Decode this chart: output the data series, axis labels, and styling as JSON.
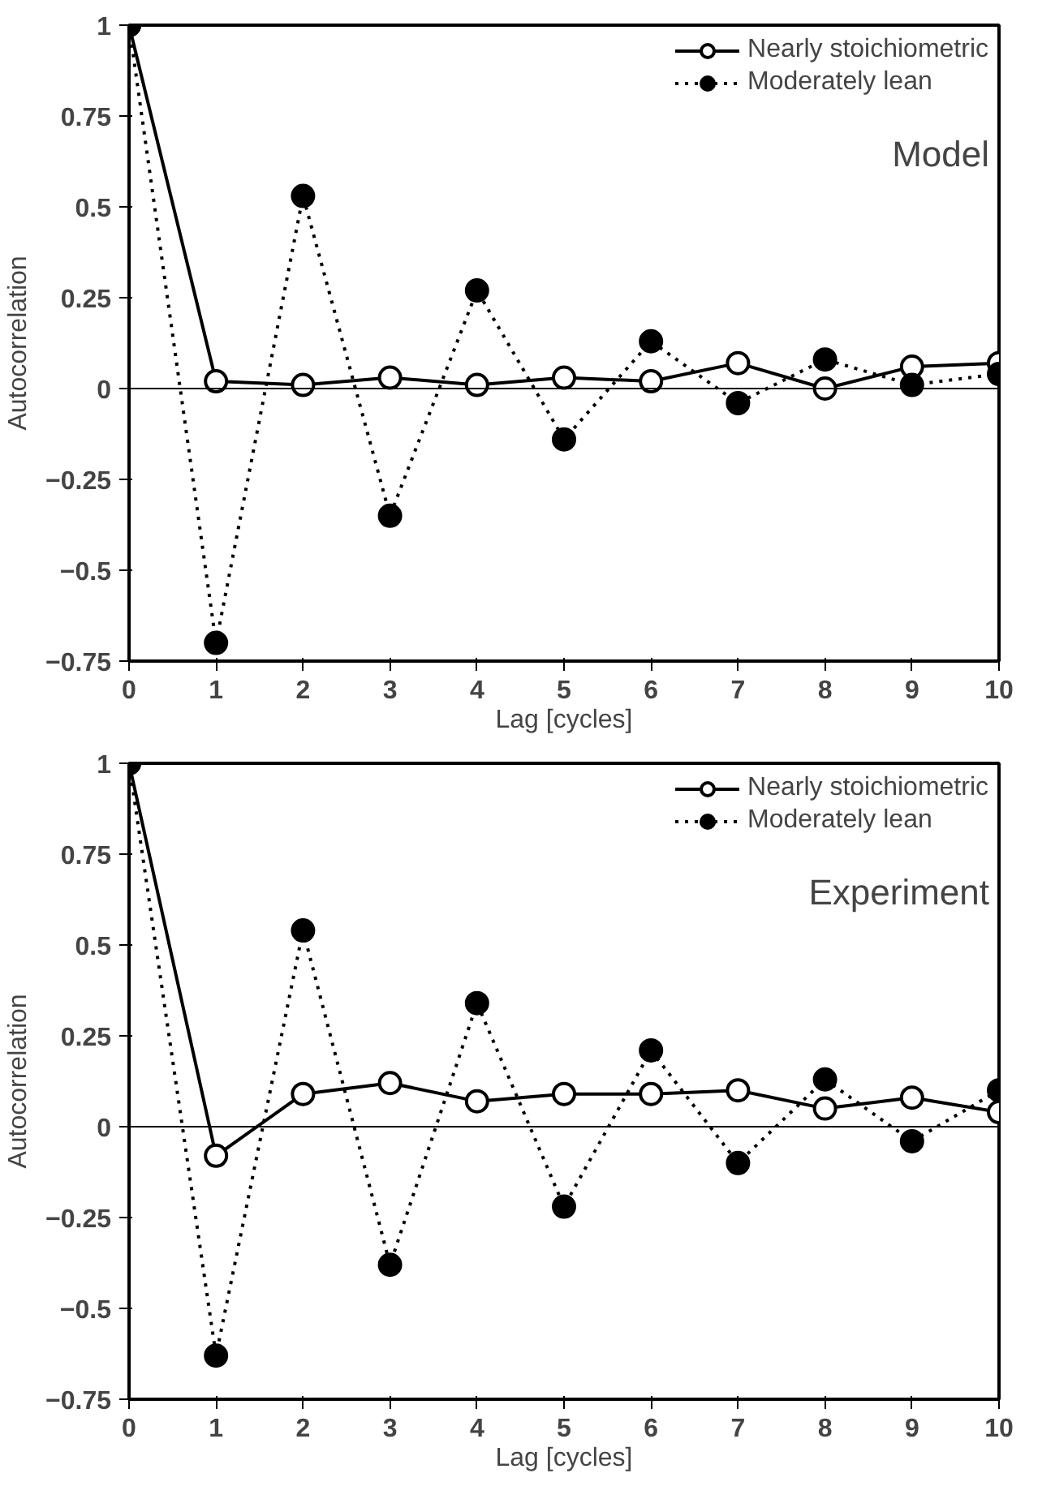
{
  "chart_data": [
    {
      "type": "line",
      "annotations": [
        "Model"
      ],
      "xlabel": "Lag [cycles]",
      "ylabel": "Autocorrelation",
      "x": [
        0,
        1,
        2,
        3,
        4,
        5,
        6,
        7,
        8,
        9,
        10
      ],
      "series": [
        {
          "name": "Nearly stoichiometric",
          "color": "#000000",
          "line_style": "solid",
          "marker": "circle",
          "values": [
            1,
            0.02,
            0.01,
            0.03,
            0.01,
            0.03,
            0.02,
            0.07,
            0.0,
            0.06,
            0.07
          ]
        },
        {
          "name": "Moderately lean",
          "color": "#000000",
          "line_style": "dotted",
          "marker": "circle",
          "values": [
            1,
            -0.7,
            0.53,
            -0.35,
            0.27,
            -0.14,
            0.13,
            -0.04,
            0.08,
            0.01,
            0.04
          ]
        }
      ],
      "xlim": [
        0,
        10
      ],
      "xticks": [
        0,
        1,
        2,
        3,
        4,
        5,
        6,
        7,
        8,
        9,
        10
      ],
      "ylim": [
        -0.75,
        1
      ],
      "yticks": [
        -0.75,
        -0.5,
        -0.25,
        0,
        0.25,
        0.5,
        0.75,
        1
      ],
      "ref_lines": [
        {
          "axis": "y",
          "value": 0,
          "color": "#000000"
        }
      ],
      "grid": false,
      "legend": "top right"
    },
    {
      "type": "line",
      "annotations": [
        "Experiment"
      ],
      "xlabel": "Lag [cycles]",
      "ylabel": "Autocorrelation",
      "x": [
        0,
        1,
        2,
        3,
        4,
        5,
        6,
        7,
        8,
        9,
        10
      ],
      "series": [
        {
          "name": "Nearly stoichiometric",
          "color": "#000000",
          "line_style": "solid",
          "marker": "circle",
          "values": [
            1,
            -0.08,
            0.09,
            0.12,
            0.07,
            0.09,
            0.09,
            0.1,
            0.05,
            0.08,
            0.04
          ]
        },
        {
          "name": "Moderately lean",
          "color": "#000000",
          "line_style": "dotted",
          "marker": "circle",
          "values": [
            1,
            -0.63,
            0.54,
            -0.38,
            0.34,
            -0.22,
            0.21,
            -0.1,
            0.13,
            -0.04,
            0.1
          ]
        }
      ],
      "xlim": [
        0,
        10
      ],
      "xticks": [
        0,
        1,
        2,
        3,
        4,
        5,
        6,
        7,
        8,
        9,
        10
      ],
      "ylim": [
        -0.75,
        1
      ],
      "yticks": [
        -0.75,
        -0.5,
        -0.25,
        0,
        0.25,
        0.5,
        0.75,
        1
      ],
      "ref_lines": [
        {
          "axis": "y",
          "value": 0,
          "color": "#000000"
        }
      ],
      "grid": false,
      "legend": "top right"
    }
  ]
}
